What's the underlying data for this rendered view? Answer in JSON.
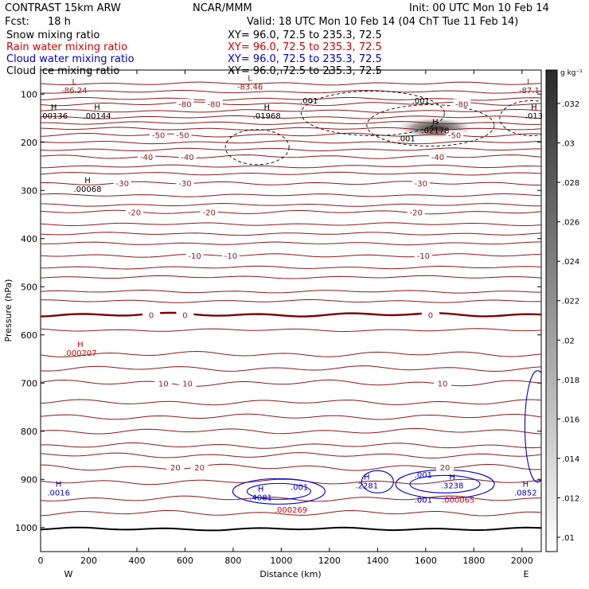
{
  "header": {
    "model": "CONTRAST 15km ARW",
    "center": "NCAR/MMM",
    "init": "Init: 00 UTC Mon 10 Feb 14",
    "fcst_label": "Fcst:",
    "fcst_value": "18 h",
    "valid": "Valid: 18 UTC Mon 10 Feb 14 (04 ChT Tue 11 Feb 14)"
  },
  "fields": [
    {
      "name": "Snow mixing ratio",
      "xy": "XY=  96.0, 72.5 to 235.3, 72.5",
      "color": "#000000"
    },
    {
      "name": "Rain water mixing ratio",
      "xy": "XY=  96.0, 72.5 to 235.3, 72.5",
      "color": "#d00000"
    },
    {
      "name": "Cloud water mixing ratio",
      "xy": "XY=  96.0, 72.5 to 235.3, 72.5",
      "color": "#0000c8"
    },
    {
      "name": "Cloud ice mixing ratio",
      "xy": "XY=  96.0, 72.5 to 235.3, 72.5",
      "color": "#000000"
    }
  ],
  "colors": {
    "temperature_contour": "#8b1a1a",
    "freezing_contour": "#7a0000",
    "rain": "#d00000",
    "cloud_water": "#0000c8",
    "ice": "#000000"
  },
  "chart_data": {
    "type": "heatmap",
    "xlabel": "Distance (km)",
    "ylabel": "Pressure (hPa)",
    "xlim": [
      0,
      2080
    ],
    "ylim": [
      1050,
      50
    ],
    "x_ticks": [
      0,
      200,
      400,
      600,
      800,
      1000,
      1200,
      1400,
      1600,
      1800,
      2000
    ],
    "y_ticks": [
      100,
      200,
      300,
      400,
      500,
      600,
      700,
      800,
      900,
      1000
    ],
    "x_end_labels": {
      "left": "W",
      "right": "E"
    },
    "colorbar": {
      "unit": "g kg⁻¹",
      "ticks": [
        ".01",
        ".012",
        ".014",
        ".016",
        ".018",
        ".02",
        ".022",
        ".024",
        ".026",
        ".028",
        ".03",
        ".032"
      ]
    },
    "temperature_contours": [
      {
        "p": 120,
        "labels": [
          {
            "x": 600,
            "t": "-80"
          },
          {
            "x": 720,
            "t": "-80"
          },
          {
            "x": 1750,
            "t": "-80"
          }
        ]
      },
      {
        "p": 185,
        "labels": [
          {
            "x": 490,
            "t": "-50"
          },
          {
            "x": 590,
            "t": "-50"
          },
          {
            "x": 1720,
            "t": "-50"
          }
        ]
      },
      {
        "p": 230,
        "labels": [
          {
            "x": 440,
            "t": "-40"
          },
          {
            "x": 610,
            "t": "-40"
          },
          {
            "x": 1650,
            "t": "-40"
          }
        ]
      },
      {
        "p": 285,
        "labels": [
          {
            "x": 340,
            "t": "-30"
          },
          {
            "x": 600,
            "t": "-30"
          },
          {
            "x": 1580,
            "t": "-30"
          }
        ]
      },
      {
        "p": 345,
        "labels": [
          {
            "x": 390,
            "t": "-20"
          },
          {
            "x": 700,
            "t": "-20"
          },
          {
            "x": 1560,
            "t": "-20"
          }
        ]
      },
      {
        "p": 435,
        "labels": [
          {
            "x": 640,
            "t": "-10"
          },
          {
            "x": 790,
            "t": "-10"
          },
          {
            "x": 1590,
            "t": "-10"
          }
        ]
      },
      {
        "p": 558,
        "labels": [
          {
            "x": 460,
            "t": "0"
          },
          {
            "x": 600,
            "t": "0"
          },
          {
            "x": 1620,
            "t": "0"
          }
        ],
        "freezing": true
      },
      {
        "p": 700,
        "labels": [
          {
            "x": 510,
            "t": "10"
          },
          {
            "x": 610,
            "t": "10"
          },
          {
            "x": 1670,
            "t": "10"
          }
        ]
      },
      {
        "p": 875,
        "labels": [
          {
            "x": 560,
            "t": "20"
          },
          {
            "x": 660,
            "t": "20"
          },
          {
            "x": 1680,
            "t": "20"
          }
        ]
      }
    ],
    "extra_levels": [
      78,
      95,
      110,
      135,
      148,
      160,
      172,
      200,
      215,
      250,
      265,
      310,
      330,
      370,
      390,
      410,
      460,
      480,
      510,
      530,
      590,
      640,
      670,
      740,
      770,
      800,
      830,
      850,
      905,
      940,
      970
    ],
    "extrema": [
      {
        "x": 140,
        "p": 80,
        "kind": "L",
        "value": "-86.24",
        "color": "#8b1a1a"
      },
      {
        "x": 870,
        "p": 72,
        "kind": "L",
        "value": "-83.46",
        "color": "#8b1a1a"
      },
      {
        "x": 2030,
        "p": 80,
        "kind": "L",
        "value": "-87.1",
        "color": "#8b1a1a"
      },
      {
        "x": 55,
        "p": 133,
        "kind": "H",
        "value": ".00136",
        "color": "#000000"
      },
      {
        "x": 235,
        "p": 133,
        "kind": "H",
        "value": ".00144",
        "color": "#000000"
      },
      {
        "x": 940,
        "p": 133,
        "kind": "H",
        "value": ".01968",
        "color": "#000000"
      },
      {
        "x": 1640,
        "p": 163,
        "kind": "H",
        "value": ".02178",
        "color": "#000000"
      },
      {
        "x": 2050,
        "p": 133,
        "kind": "H",
        "value": ".013",
        "color": "#000000"
      },
      {
        "x": 195,
        "p": 285,
        "kind": "H",
        "value": ".00068",
        "color": "#000000"
      },
      {
        "x": 165,
        "p": 625,
        "kind": "H",
        "value": ".000207",
        "color": "#d00000"
      },
      {
        "x": 75,
        "p": 915,
        "kind": "H",
        "value": ".0016",
        "color": "#0000c8"
      },
      {
        "x": 915,
        "p": 925,
        "kind": "H",
        "value": ".4081",
        "color": "#0000c8"
      },
      {
        "x": 1355,
        "p": 900,
        "kind": "H",
        "value": ".2281",
        "color": "#0000c8"
      },
      {
        "x": 1710,
        "p": 900,
        "kind": "H",
        "value": ".3238",
        "color": "#0000c8"
      },
      {
        "x": 2015,
        "p": 915,
        "kind": "H",
        "value": ".0852",
        "color": "#0000c8"
      }
    ],
    "plain_labels": [
      {
        "x": 1115,
        "p": 113,
        "t": ".001",
        "color": "#000000"
      },
      {
        "x": 1580,
        "p": 113,
        "t": ".001",
        "color": "#000000"
      },
      {
        "x": 1520,
        "p": 191,
        "t": ".001",
        "color": "#000000"
      },
      {
        "x": 1075,
        "p": 915,
        "t": ".001",
        "color": "#0000c8"
      },
      {
        "x": 1590,
        "p": 890,
        "t": ".001",
        "color": "#0000c8"
      },
      {
        "x": 1590,
        "p": 942,
        "t": ".001",
        "color": "#0000c8"
      },
      {
        "x": 1040,
        "p": 962,
        "t": ".000269",
        "color": "#d00000"
      },
      {
        "x": 1735,
        "p": 942,
        "t": ".000065",
        "color": "#d00000"
      }
    ],
    "snow_max": {
      "x": 1640,
      "p": 170,
      "value": 0.02178
    }
  }
}
